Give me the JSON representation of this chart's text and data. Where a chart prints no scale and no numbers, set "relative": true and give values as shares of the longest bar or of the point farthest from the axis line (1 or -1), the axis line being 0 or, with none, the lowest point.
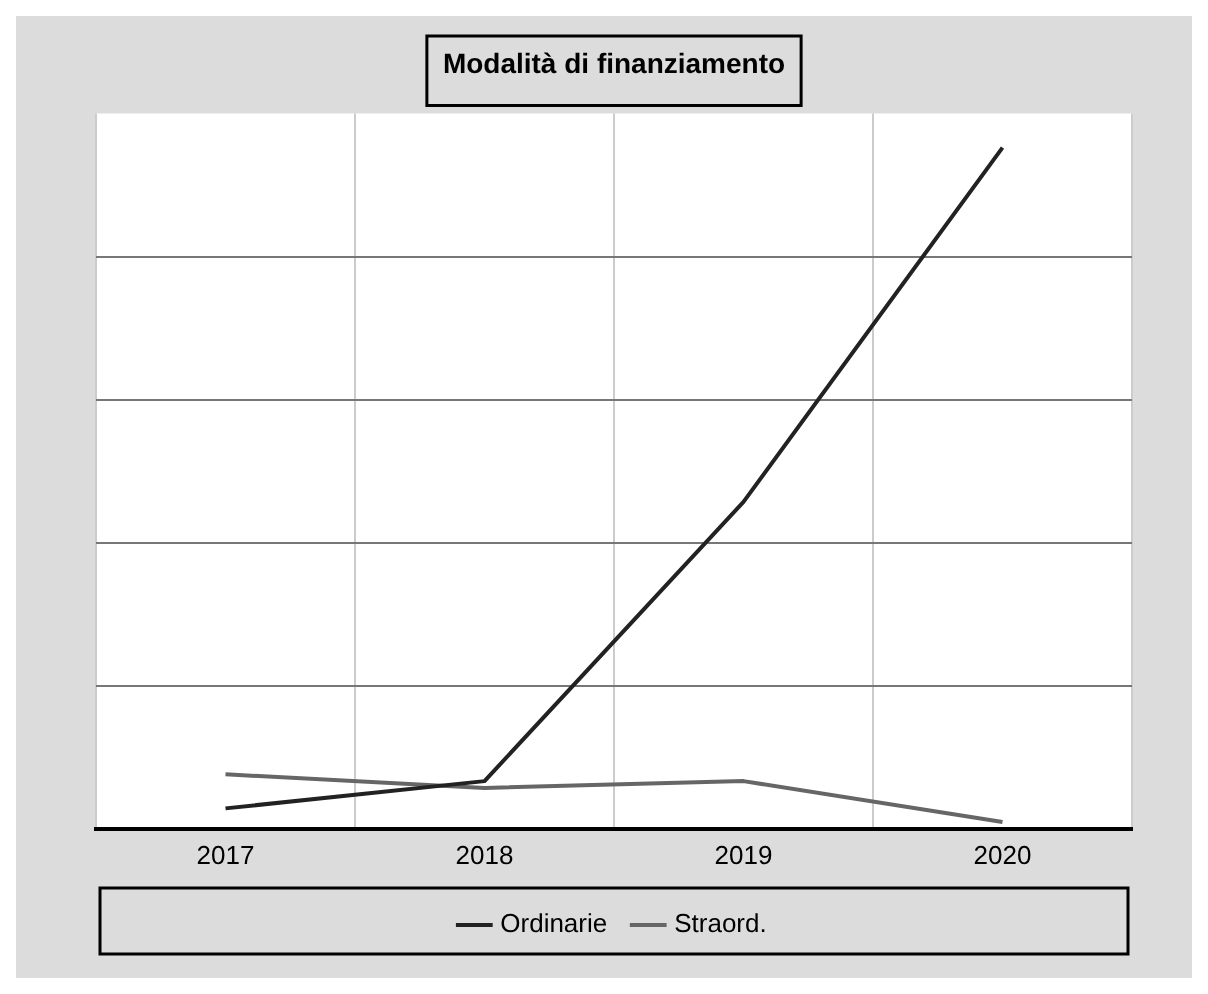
{
  "chart_data": {
    "type": "line",
    "title": "Modalità di finanziamento",
    "categories": [
      "2017",
      "2018",
      "2019",
      "2020"
    ],
    "relative": true,
    "series": [
      {
        "name": "Ordinarie",
        "color": "#222222",
        "values": [
          0.03,
          0.07,
          0.48,
          1
        ]
      },
      {
        "name": "Straord.",
        "color": "#666666",
        "values": [
          0.08,
          0.06,
          0.07,
          0.01
        ]
      }
    ],
    "grid": true,
    "legend": "bottom",
    "marker": "none",
    "line_style": "solid"
  }
}
